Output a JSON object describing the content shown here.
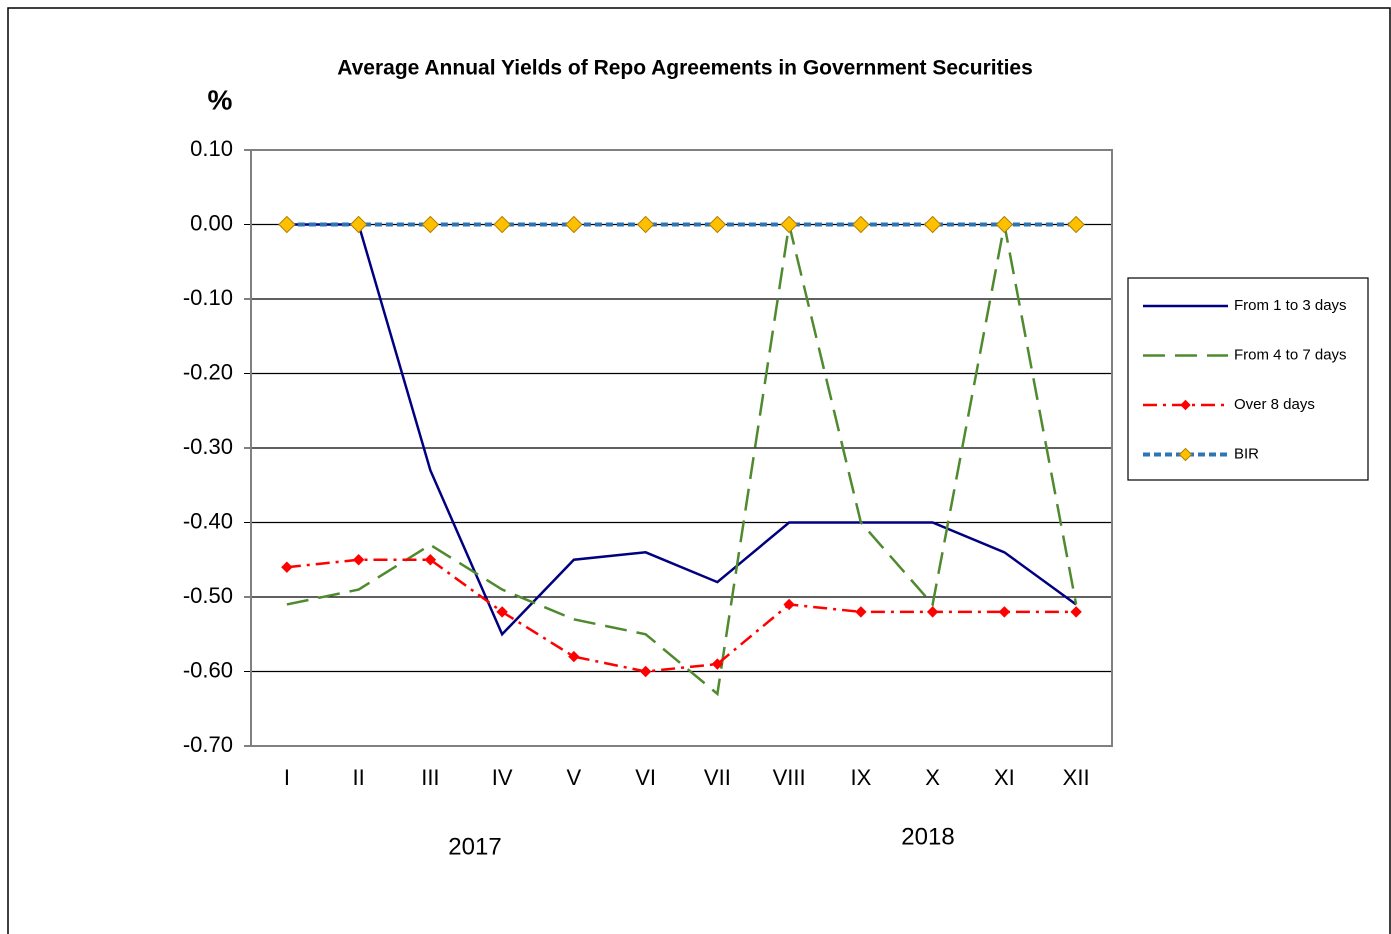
{
  "chart_data": {
    "type": "line",
    "title": "Average Annual Yields of Repo Agreements in Government Securities",
    "y_label": "%",
    "annotations": [
      "2017",
      "2018"
    ],
    "categories": [
      "I",
      "II",
      "III",
      "IV",
      "V",
      "VI",
      "VII",
      "VIII",
      "IX",
      "X",
      "XI",
      "XII"
    ],
    "series": [
      {
        "name": "From 1 to 3 days",
        "color": "#000080",
        "dash": "solid",
        "marker": "none",
        "values": [
          0,
          0,
          -0.33,
          -0.55,
          -0.45,
          -0.44,
          -0.48,
          -0.4,
          -0.4,
          -0.4,
          -0.44,
          -0.51
        ]
      },
      {
        "name": "From 4 to 7 days",
        "color": "#4f8a2f",
        "dash": "long",
        "marker": "none",
        "values": [
          -0.51,
          -0.49,
          -0.43,
          -0.49,
          -0.53,
          -0.55,
          -0.63,
          0,
          -0.4,
          -0.51,
          0,
          -0.51
        ]
      },
      {
        "name": "Over 8 days",
        "color": "#ff0000",
        "dash": "dashdot",
        "marker": "diamond",
        "values": [
          -0.46,
          -0.45,
          -0.45,
          -0.52,
          -0.58,
          -0.6,
          -0.59,
          -0.51,
          -0.52,
          -0.52,
          -0.52,
          -0.52
        ]
      },
      {
        "name": "BIR",
        "color": "#2e75b6",
        "dash": "dot",
        "marker": "diamond",
        "marker_color": "#ffc000",
        "values": [
          0,
          0,
          0,
          0,
          0,
          0,
          0,
          0,
          0,
          0,
          0,
          0
        ]
      }
    ],
    "ylim": [
      -0.7,
      0.1
    ],
    "yticks": [
      {
        "value": 0.1,
        "label": "0.10"
      },
      {
        "value": 0,
        "label": "0.00"
      },
      {
        "value": -0.1,
        "label": "-0.10"
      },
      {
        "value": -0.2,
        "label": "-0.20"
      },
      {
        "value": -0.3,
        "label": "-0.30"
      },
      {
        "value": -0.4,
        "label": "-0.40"
      },
      {
        "value": -0.5,
        "label": "-0.50"
      },
      {
        "value": -0.6,
        "label": "-0.60"
      },
      {
        "value": -0.7,
        "label": "-0.70"
      }
    ],
    "grid": true,
    "legend": "right"
  }
}
